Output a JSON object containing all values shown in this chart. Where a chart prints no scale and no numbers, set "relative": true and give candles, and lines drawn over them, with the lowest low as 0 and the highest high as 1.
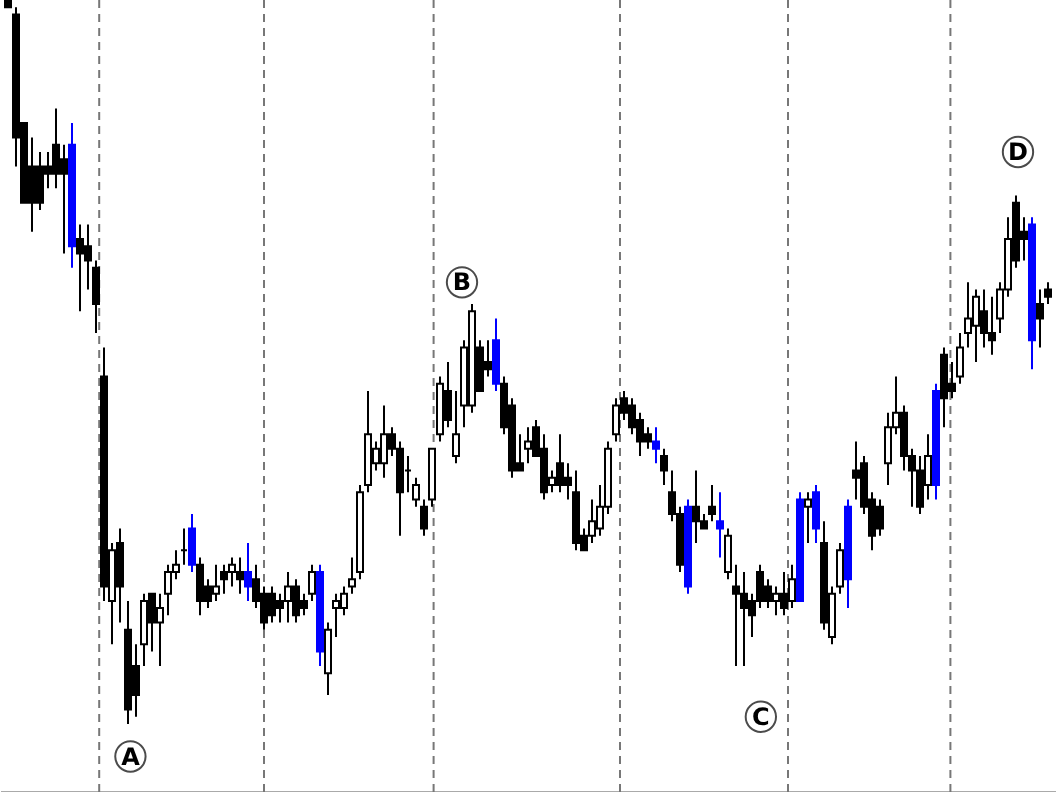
{
  "chart_data": {
    "type": "candlestick",
    "relative": true,
    "categories": [
      null,
      null,
      null,
      null,
      null,
      null,
      null,
      null,
      null,
      null,
      null,
      null,
      null,
      null,
      null,
      null,
      null,
      null,
      null,
      null,
      null,
      null,
      null,
      null,
      null,
      null,
      null,
      null,
      null,
      null,
      null,
      null,
      null,
      null,
      null,
      null,
      null,
      null,
      null,
      null,
      null,
      null,
      null,
      null,
      null,
      null,
      null,
      null,
      null,
      null,
      null,
      null,
      null,
      null,
      null,
      null,
      null,
      null,
      null,
      null,
      null,
      null,
      null,
      null,
      null,
      null,
      null,
      null,
      null,
      null,
      null,
      null,
      null,
      null,
      null,
      null,
      null,
      null,
      null,
      null,
      null,
      null,
      null,
      null,
      null,
      null,
      null,
      null,
      null,
      null,
      null,
      null,
      null,
      null,
      null,
      null,
      null,
      null,
      null,
      null,
      null,
      null,
      null,
      null,
      null,
      null,
      null,
      null,
      null,
      null,
      null,
      null,
      null,
      null,
      null,
      null,
      null,
      null,
      null,
      null,
      null,
      null,
      null,
      null,
      null,
      null,
      null,
      null,
      null,
      null,
      null
    ],
    "ohlc": [
      [
        1.0,
        1.0,
        0.99,
        0.99
      ],
      [
        0.98,
        0.99,
        0.77,
        0.81
      ],
      [
        0.83,
        0.83,
        0.72,
        0.72
      ],
      [
        0.77,
        0.81,
        0.68,
        0.72
      ],
      [
        0.77,
        0.79,
        0.71,
        0.72
      ],
      [
        0.77,
        0.79,
        0.74,
        0.76
      ],
      [
        0.8,
        0.85,
        0.74,
        0.76
      ],
      [
        0.78,
        0.8,
        0.65,
        0.76
      ],
      [
        0.8,
        0.83,
        0.63,
        0.66
      ],
      [
        0.67,
        0.69,
        0.57,
        0.65
      ],
      [
        0.66,
        0.69,
        0.6,
        0.64
      ],
      [
        0.63,
        0.64,
        0.54,
        0.58
      ],
      [
        0.48,
        0.52,
        0.17,
        0.19
      ],
      [
        0.17,
        0.25,
        0.11,
        0.24
      ],
      [
        0.25,
        0.27,
        0.14,
        0.19
      ],
      [
        0.13,
        0.17,
        0.0,
        0.02
      ],
      [
        0.08,
        0.11,
        0.01,
        0.04
      ],
      [
        0.11,
        0.18,
        0.08,
        0.17
      ],
      [
        0.18,
        0.18,
        0.1,
        0.14
      ],
      [
        0.14,
        0.18,
        0.08,
        0.16
      ],
      [
        0.18,
        0.22,
        0.15,
        0.21
      ],
      [
        0.21,
        0.24,
        0.2,
        0.22
      ],
      [
        0.24,
        0.27,
        0.22,
        0.24
      ],
      [
        0.27,
        0.29,
        0.21,
        0.22
      ],
      [
        0.22,
        0.23,
        0.15,
        0.17
      ],
      [
        0.19,
        0.2,
        0.16,
        0.17
      ],
      [
        0.18,
        0.22,
        0.17,
        0.19
      ],
      [
        0.21,
        0.22,
        0.18,
        0.2
      ],
      [
        0.21,
        0.23,
        0.19,
        0.22
      ],
      [
        0.21,
        0.23,
        0.18,
        0.2
      ],
      [
        0.21,
        0.25,
        0.17,
        0.19
      ],
      [
        0.2,
        0.22,
        0.16,
        0.17
      ],
      [
        0.18,
        0.19,
        0.13,
        0.14
      ],
      [
        0.18,
        0.19,
        0.14,
        0.15
      ],
      [
        0.17,
        0.18,
        0.14,
        0.16
      ],
      [
        0.17,
        0.21,
        0.14,
        0.19
      ],
      [
        0.19,
        0.2,
        0.14,
        0.15
      ],
      [
        0.17,
        0.18,
        0.15,
        0.16
      ],
      [
        0.18,
        0.22,
        0.17,
        0.21
      ],
      [
        0.21,
        0.22,
        0.08,
        0.1
      ],
      [
        0.07,
        0.14,
        0.04,
        0.13
      ],
      [
        0.16,
        0.18,
        0.12,
        0.17
      ],
      [
        0.16,
        0.19,
        0.15,
        0.18
      ],
      [
        0.19,
        0.23,
        0.18,
        0.2
      ],
      [
        0.21,
        0.33,
        0.2,
        0.32
      ],
      [
        0.33,
        0.46,
        0.32,
        0.4
      ],
      [
        0.36,
        0.39,
        0.35,
        0.38
      ],
      [
        0.36,
        0.44,
        0.34,
        0.4
      ],
      [
        0.4,
        0.41,
        0.37,
        0.38
      ],
      [
        0.38,
        0.39,
        0.26,
        0.32
      ],
      [
        0.35,
        0.37,
        0.32,
        0.35
      ],
      [
        0.31,
        0.34,
        0.3,
        0.33
      ],
      [
        0.3,
        0.31,
        0.26,
        0.27
      ],
      [
        0.31,
        0.38,
        0.3,
        0.38
      ],
      [
        0.4,
        0.48,
        0.39,
        0.47
      ],
      [
        0.46,
        0.5,
        0.41,
        0.42
      ],
      [
        0.37,
        0.46,
        0.36,
        0.4
      ],
      [
        0.44,
        0.53,
        0.41,
        0.52
      ],
      [
        0.44,
        0.58,
        0.43,
        0.57
      ],
      [
        0.52,
        0.53,
        0.46,
        0.46
      ],
      [
        0.5,
        0.53,
        0.48,
        0.49
      ],
      [
        0.53,
        0.56,
        0.46,
        0.47
      ],
      [
        0.47,
        0.48,
        0.4,
        0.41
      ],
      [
        0.44,
        0.45,
        0.34,
        0.35
      ],
      [
        0.36,
        0.4,
        0.35,
        0.35
      ],
      [
        0.38,
        0.41,
        0.36,
        0.39
      ],
      [
        0.41,
        0.42,
        0.37,
        0.37
      ],
      [
        0.38,
        0.4,
        0.31,
        0.32
      ],
      [
        0.33,
        0.35,
        0.32,
        0.34
      ],
      [
        0.36,
        0.4,
        0.32,
        0.33
      ],
      [
        0.34,
        0.36,
        0.31,
        0.33
      ],
      [
        0.32,
        0.35,
        0.24,
        0.25
      ],
      [
        0.26,
        0.27,
        0.24,
        0.24
      ],
      [
        0.26,
        0.31,
        0.25,
        0.28
      ],
      [
        0.27,
        0.33,
        0.26,
        0.3
      ],
      [
        0.3,
        0.39,
        0.29,
        0.38
      ],
      [
        0.4,
        0.45,
        0.39,
        0.44
      ],
      [
        0.45,
        0.46,
        0.42,
        0.43
      ],
      [
        0.44,
        0.45,
        0.4,
        0.41
      ],
      [
        0.42,
        0.43,
        0.37,
        0.39
      ],
      [
        0.4,
        0.41,
        0.38,
        0.39
      ],
      [
        0.39,
        0.41,
        0.36,
        0.38
      ],
      [
        0.37,
        0.38,
        0.33,
        0.35
      ],
      [
        0.32,
        0.35,
        0.28,
        0.29
      ],
      [
        0.29,
        0.3,
        0.21,
        0.22
      ],
      [
        0.3,
        0.31,
        0.18,
        0.19
      ],
      [
        0.3,
        0.35,
        0.25,
        0.28
      ],
      [
        0.28,
        0.29,
        0.27,
        0.27
      ],
      [
        0.3,
        0.33,
        0.28,
        0.29
      ],
      [
        0.28,
        0.32,
        0.23,
        0.27
      ],
      [
        0.21,
        0.27,
        0.2,
        0.26
      ],
      [
        0.19,
        0.22,
        0.08,
        0.18
      ],
      [
        0.18,
        0.21,
        0.08,
        0.16
      ],
      [
        0.17,
        0.18,
        0.12,
        0.15
      ],
      [
        0.21,
        0.22,
        0.16,
        0.17
      ],
      [
        0.19,
        0.2,
        0.16,
        0.17
      ],
      [
        0.17,
        0.19,
        0.15,
        0.18
      ],
      [
        0.18,
        0.21,
        0.15,
        0.16
      ],
      [
        0.17,
        0.22,
        0.16,
        0.2
      ],
      [
        0.31,
        0.32,
        0.17,
        0.17
      ],
      [
        0.3,
        0.32,
        0.25,
        0.31
      ],
      [
        0.32,
        0.33,
        0.25,
        0.27
      ],
      [
        0.25,
        0.28,
        0.13,
        0.14
      ],
      [
        0.12,
        0.19,
        0.11,
        0.18
      ],
      [
        0.19,
        0.25,
        0.18,
        0.24
      ],
      [
        0.3,
        0.31,
        0.16,
        0.2
      ],
      [
        0.35,
        0.39,
        0.31,
        0.34
      ],
      [
        0.36,
        0.37,
        0.29,
        0.3
      ],
      [
        0.31,
        0.32,
        0.24,
        0.26
      ],
      [
        0.3,
        0.31,
        0.26,
        0.27
      ],
      [
        0.36,
        0.43,
        0.33,
        0.41
      ],
      [
        0.41,
        0.48,
        0.4,
        0.43
      ],
      [
        0.43,
        0.44,
        0.35,
        0.37
      ],
      [
        0.37,
        0.38,
        0.3,
        0.35
      ],
      [
        0.35,
        0.37,
        0.29,
        0.3
      ],
      [
        0.33,
        0.4,
        0.31,
        0.37
      ],
      [
        0.46,
        0.47,
        0.31,
        0.33
      ],
      [
        0.51,
        0.52,
        0.41,
        0.45
      ],
      [
        0.47,
        0.5,
        0.45,
        0.46
      ],
      [
        0.48,
        0.54,
        0.47,
        0.52
      ],
      [
        0.54,
        0.61,
        0.52,
        0.56
      ],
      [
        0.55,
        0.6,
        0.5,
        0.59
      ],
      [
        0.57,
        0.6,
        0.52,
        0.54
      ],
      [
        0.54,
        0.59,
        0.51,
        0.53
      ],
      [
        0.56,
        0.61,
        0.54,
        0.6
      ],
      [
        0.6,
        0.7,
        0.59,
        0.67
      ],
      [
        0.72,
        0.73,
        0.63,
        0.64
      ],
      [
        0.68,
        0.7,
        0.64,
        0.67
      ],
      [
        0.69,
        0.7,
        0.49,
        0.53
      ],
      [
        0.58,
        0.6,
        0.52,
        0.56
      ],
      [
        0.6,
        0.61,
        0.58,
        0.59
      ]
    ],
    "colors": [
      "#000000",
      "#000000",
      "#000000",
      "#000000",
      "#000000",
      "#000000",
      "#000000",
      "#000000",
      "#0000ff",
      "#000000",
      "#000000",
      "#000000",
      "#000000",
      "#ffffff",
      "#000000",
      "#000000",
      "#000000",
      "#ffffff",
      "#000000",
      "#ffffff",
      "#ffffff",
      "#ffffff",
      "#000000",
      "#0000ff",
      "#000000",
      "#000000",
      "#ffffff",
      "#000000",
      "#ffffff",
      "#000000",
      "#0000ff",
      "#000000",
      "#000000",
      "#000000",
      "#000000",
      "#ffffff",
      "#000000",
      "#000000",
      "#ffffff",
      "#0000ff",
      "#ffffff",
      "#ffffff",
      "#ffffff",
      "#ffffff",
      "#ffffff",
      "#ffffff",
      "#ffffff",
      "#ffffff",
      "#000000",
      "#000000",
      "#000000",
      "#ffffff",
      "#000000",
      "#ffffff",
      "#ffffff",
      "#000000",
      "#ffffff",
      "#ffffff",
      "#ffffff",
      "#000000",
      "#000000",
      "#0000ff",
      "#000000",
      "#000000",
      "#000000",
      "#ffffff",
      "#000000",
      "#000000",
      "#ffffff",
      "#000000",
      "#000000",
      "#000000",
      "#000000",
      "#ffffff",
      "#ffffff",
      "#ffffff",
      "#ffffff",
      "#000000",
      "#000000",
      "#000000",
      "#000000",
      "#0000ff",
      "#000000",
      "#000000",
      "#000000",
      "#0000ff",
      "#000000",
      "#000000",
      "#000000",
      "#0000ff",
      "#ffffff",
      "#000000",
      "#000000",
      "#000000",
      "#000000",
      "#000000",
      "#ffffff",
      "#000000",
      "#ffffff",
      "#0000ff",
      "#ffffff",
      "#0000ff",
      "#000000",
      "#ffffff",
      "#ffffff",
      "#0000ff",
      "#000000",
      "#000000",
      "#000000",
      "#000000",
      "#ffffff",
      "#ffffff",
      "#000000",
      "#000000",
      "#000000",
      "#ffffff",
      "#0000ff",
      "#000000",
      "#000000",
      "#ffffff",
      "#ffffff",
      "#ffffff",
      "#000000",
      "#000000",
      "#ffffff",
      "#ffffff",
      "#000000",
      "#000000",
      "#0000ff",
      "#000000",
      "#000000"
    ],
    "annotations": [
      "A",
      "B",
      "C",
      "D"
    ]
  }
}
